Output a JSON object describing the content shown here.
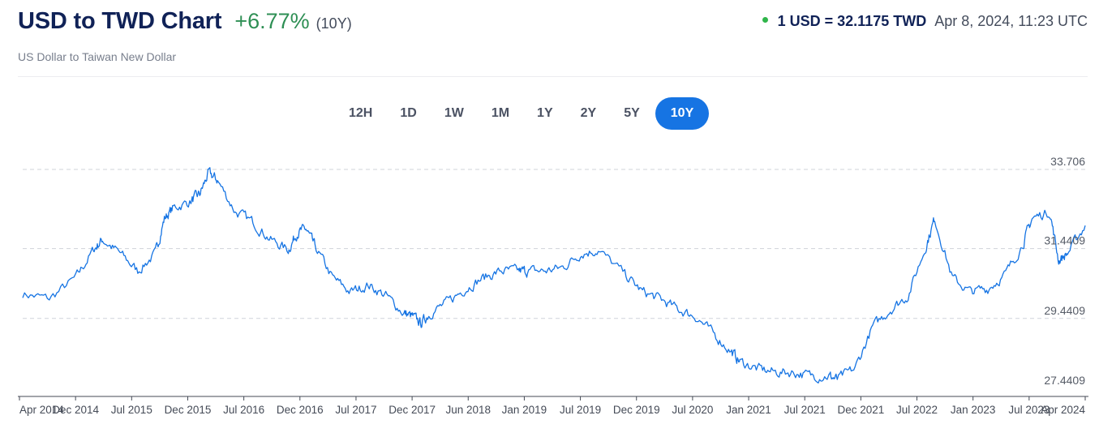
{
  "header": {
    "title": "USD to TWD Chart",
    "change": "+6.77%",
    "period": "(10Y)",
    "subtitle": "US Dollar to Taiwan New Dollar",
    "rate": "1 USD = 32.1175 TWD",
    "timestamp": "Apr 8, 2024, 11:23 UTC"
  },
  "ranges": [
    {
      "label": "12H",
      "active": false
    },
    {
      "label": "1D",
      "active": false
    },
    {
      "label": "1W",
      "active": false
    },
    {
      "label": "1M",
      "active": false
    },
    {
      "label": "1Y",
      "active": false
    },
    {
      "label": "2Y",
      "active": false
    },
    {
      "label": "5Y",
      "active": false
    },
    {
      "label": "10Y",
      "active": true
    }
  ],
  "colors": {
    "line": "#1674e3",
    "title": "#102257",
    "change": "#2e8f54",
    "active_button": "#1674e3",
    "live_dot": "#2fb54a"
  },
  "chart_data": {
    "type": "line",
    "title": "USD to TWD Chart",
    "xlabel": "",
    "ylabel": "",
    "ylim": [
      27.4409,
      33.706
    ],
    "y_ticks": [
      {
        "value": 33.706,
        "label": "33.706"
      },
      {
        "value": 31.4409,
        "label": "31.4409"
      },
      {
        "value": 29.4409,
        "label": "29.4409"
      },
      {
        "value": 27.4409,
        "label": "27.4409"
      }
    ],
    "grid": "horizontal-dashed",
    "x_ticks": [
      "Apr 2014",
      "Dec 2014",
      "Jul 2015",
      "Dec 2015",
      "Jul 2016",
      "Dec 2016",
      "Jul 2017",
      "Dec 2017",
      "Jun 2018",
      "Jan 2019",
      "Jul 2019",
      "Dec 2019",
      "Jul 2020",
      "Jan 2021",
      "Jul 2021",
      "Dec 2021",
      "Jul 2022",
      "Jan 2023",
      "Jul 2023",
      "Apr 2024"
    ],
    "series": [
      {
        "x": [
          "2014-04",
          "2014-07",
          "2014-10",
          "2014-12",
          "2015-01",
          "2015-03",
          "2015-05",
          "2015-07",
          "2015-08",
          "2015-09",
          "2015-11",
          "2015-12",
          "2016-01",
          "2016-02",
          "2016-04",
          "2016-06",
          "2016-08",
          "2016-10",
          "2016-11",
          "2016-12",
          "2017-01",
          "2017-03",
          "2017-05",
          "2017-07",
          "2017-09",
          "2017-11",
          "2017-12",
          "2018-01",
          "2018-02",
          "2018-04",
          "2018-06",
          "2018-08",
          "2018-10",
          "2018-12",
          "2019-01",
          "2019-03",
          "2019-05",
          "2019-07",
          "2019-09",
          "2019-12",
          "2020-02",
          "2020-04",
          "2020-06",
          "2020-08",
          "2020-10",
          "2020-12",
          "2021-01",
          "2021-03",
          "2021-05",
          "2021-07",
          "2021-09",
          "2021-11",
          "2021-12",
          "2022-02",
          "2022-04",
          "2022-06",
          "2022-08",
          "2022-10",
          "2022-11",
          "2023-01",
          "2023-03",
          "2023-05",
          "2023-07",
          "2023-09",
          "2023-10",
          "2023-12",
          "2024-01",
          "2024-02",
          "2024-04"
        ],
        "values": [
          30.15,
          30.0,
          30.6,
          31.4,
          31.7,
          31.3,
          30.8,
          31.3,
          32.3,
          32.6,
          32.8,
          33.0,
          33.6,
          33.4,
          32.5,
          32.2,
          31.7,
          31.4,
          31.9,
          32.0,
          31.5,
          30.6,
          30.2,
          30.4,
          30.1,
          29.6,
          29.5,
          29.3,
          29.6,
          29.9,
          30.3,
          30.6,
          30.8,
          30.8,
          30.8,
          30.8,
          30.9,
          31.3,
          31.4,
          30.7,
          30.2,
          30.0,
          29.7,
          29.5,
          29.0,
          28.5,
          28.2,
          28.0,
          27.9,
          27.9,
          27.8,
          27.8,
          27.7,
          28.0,
          29.2,
          29.7,
          30.1,
          31.5,
          32.3,
          30.6,
          30.2,
          30.3,
          30.7,
          31.6,
          32.3,
          32.5,
          31.1,
          31.3,
          32.1
        ]
      }
    ]
  }
}
